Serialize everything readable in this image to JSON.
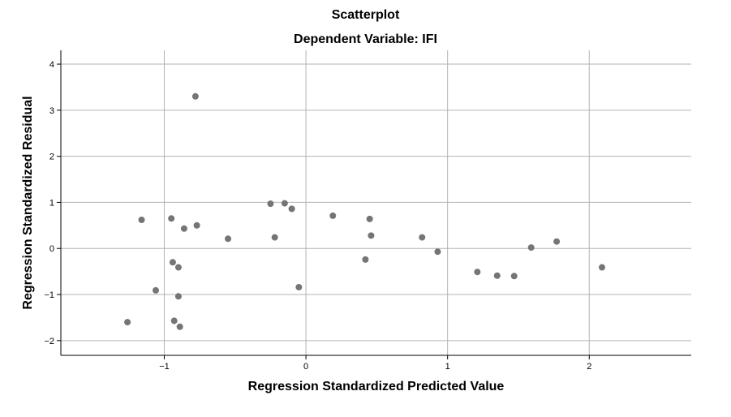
{
  "chart_data": {
    "type": "scatter",
    "title": "Scatterplot",
    "subtitle": "Dependent Variable: IFI",
    "xlabel": "Regression Standardized Predicted Value",
    "ylabel": "Regression Standardized Residual",
    "xlim": [
      -1.73,
      2.72
    ],
    "ylim": [
      -2.32,
      4.3
    ],
    "xticks": [
      -1,
      0,
      1,
      2
    ],
    "xtick_labels": [
      "−1",
      "0",
      "1",
      "2"
    ],
    "yticks": [
      -2,
      -1,
      0,
      1,
      2,
      3,
      4
    ],
    "ytick_labels": [
      "−2",
      "−1",
      "0",
      "1",
      "2",
      "3",
      "4"
    ],
    "grid": true,
    "point_color": "#757575",
    "points": [
      {
        "x": -0.78,
        "y": 3.3
      },
      {
        "x": -1.16,
        "y": 0.62
      },
      {
        "x": -0.95,
        "y": 0.65
      },
      {
        "x": -0.86,
        "y": 0.43
      },
      {
        "x": -0.77,
        "y": 0.5
      },
      {
        "x": -0.55,
        "y": 0.21
      },
      {
        "x": -0.25,
        "y": 0.97
      },
      {
        "x": -0.15,
        "y": 0.98
      },
      {
        "x": -0.1,
        "y": 0.86
      },
      {
        "x": -0.22,
        "y": 0.24
      },
      {
        "x": 0.19,
        "y": 0.71
      },
      {
        "x": 0.45,
        "y": 0.64
      },
      {
        "x": 0.46,
        "y": 0.28
      },
      {
        "x": 0.82,
        "y": 0.24
      },
      {
        "x": 0.93,
        "y": -0.07
      },
      {
        "x": 0.42,
        "y": -0.24
      },
      {
        "x": -0.94,
        "y": -0.3
      },
      {
        "x": -0.9,
        "y": -0.41
      },
      {
        "x": -1.06,
        "y": -0.91
      },
      {
        "x": -0.9,
        "y": -1.04
      },
      {
        "x": -0.05,
        "y": -0.84
      },
      {
        "x": -1.26,
        "y": -1.6
      },
      {
        "x": -0.93,
        "y": -1.57
      },
      {
        "x": -0.89,
        "y": -1.7
      },
      {
        "x": 1.21,
        "y": -0.51
      },
      {
        "x": 1.35,
        "y": -0.59
      },
      {
        "x": 1.47,
        "y": -0.6
      },
      {
        "x": 1.59,
        "y": 0.02
      },
      {
        "x": 1.77,
        "y": 0.15
      },
      {
        "x": 2.09,
        "y": -0.41
      }
    ]
  }
}
